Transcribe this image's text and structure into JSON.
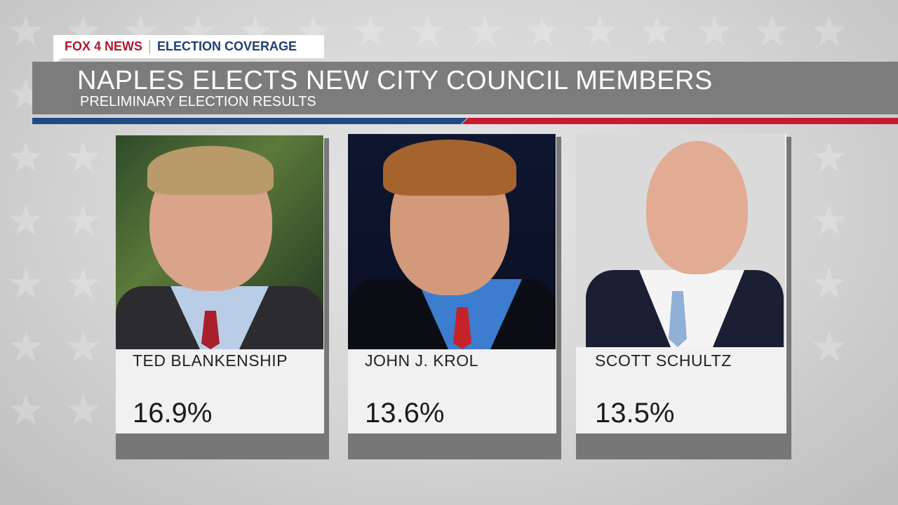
{
  "header": {
    "network": "FOX 4 NEWS",
    "section": "ELECTION COVERAGE",
    "title": "NAPLES ELECTS NEW CITY COUNCIL MEMBERS",
    "subtitle": "PRELIMINARY ELECTION RESULTS"
  },
  "colors": {
    "red": "#b0172d",
    "blue": "#1f3f73",
    "banner": "#7c7c7c"
  },
  "candidates": [
    {
      "name": "TED BLANKENSHIP",
      "percent": "16.9%"
    },
    {
      "name": "JOHN J. KROL",
      "percent": "13.6%"
    },
    {
      "name": "SCOTT SCHULTZ",
      "percent": "13.5%"
    }
  ]
}
